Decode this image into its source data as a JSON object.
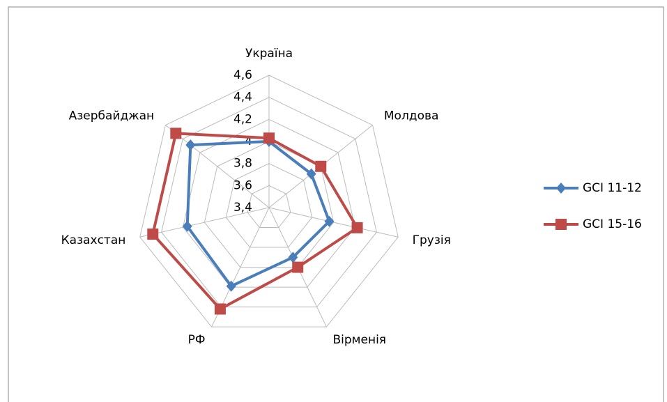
{
  "chart_data": {
    "type": "radar",
    "categories": [
      "Україна",
      "Молдова",
      "Грузія",
      "Вірменія",
      "РФ",
      "Казахстан",
      "Азербайджан"
    ],
    "series": [
      {
        "name": "GCI 11-12",
        "color": "#4a7ebb",
        "marker": "diamond",
        "values": [
          4.0,
          3.89,
          3.96,
          3.9,
          4.19,
          4.16,
          4.31
        ]
      },
      {
        "name": "GCI 15-16",
        "color": "#be4b48",
        "marker": "square",
        "values": [
          4.03,
          4.0,
          4.22,
          4.0,
          4.42,
          4.48,
          4.48
        ]
      }
    ],
    "ylim": [
      3.4,
      4.6
    ],
    "yticks": [
      {
        "value": 3.4,
        "label": "3,4"
      },
      {
        "value": 3.6,
        "label": "3,6"
      },
      {
        "value": 3.8,
        "label": "3,8"
      },
      4,
      {
        "value": 4.2,
        "label": "4,2"
      },
      {
        "value": 4.4,
        "label": "4,4"
      },
      {
        "value": 4.6,
        "label": "4,6"
      }
    ],
    "grid": true,
    "legend": "right"
  }
}
